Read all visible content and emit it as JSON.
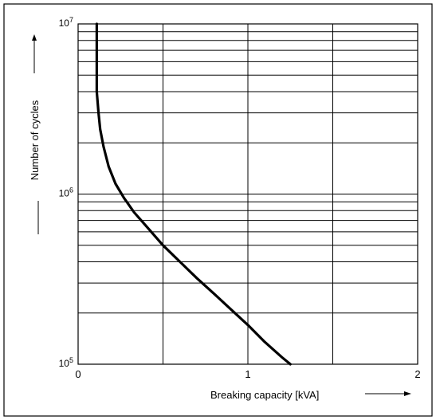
{
  "chart_data": {
    "type": "line",
    "title": "",
    "xlabel": "Breaking capacity [kVA]",
    "ylabel": "Number of cycles",
    "xscale": "linear",
    "yscale": "log",
    "xlim": [
      0,
      2
    ],
    "ylim": [
      100000,
      10000000
    ],
    "x_ticks": [
      "0",
      "1",
      "2"
    ],
    "y_ticks": [
      {
        "base": "10",
        "exp": "5"
      },
      {
        "base": "10",
        "exp": "6"
      },
      {
        "base": "10",
        "exp": "7"
      }
    ],
    "grid": true,
    "legend": "none",
    "line_color": "#000000",
    "series": [
      {
        "x": [
          0.11,
          0.11,
          0.11,
          0.12,
          0.13,
          0.15,
          0.18,
          0.22,
          0.27,
          0.33,
          0.4,
          0.5,
          0.6,
          0.7,
          0.8,
          0.9,
          1.0,
          1.1,
          1.2,
          1.25
        ],
        "y": [
          10000000,
          7000000,
          4000000,
          3000000,
          2400000,
          1900000,
          1450000,
          1150000,
          950000,
          780000,
          650000,
          500000,
          400000,
          320000,
          260000,
          210000,
          170000,
          135000,
          110000,
          100000
        ]
      }
    ]
  }
}
